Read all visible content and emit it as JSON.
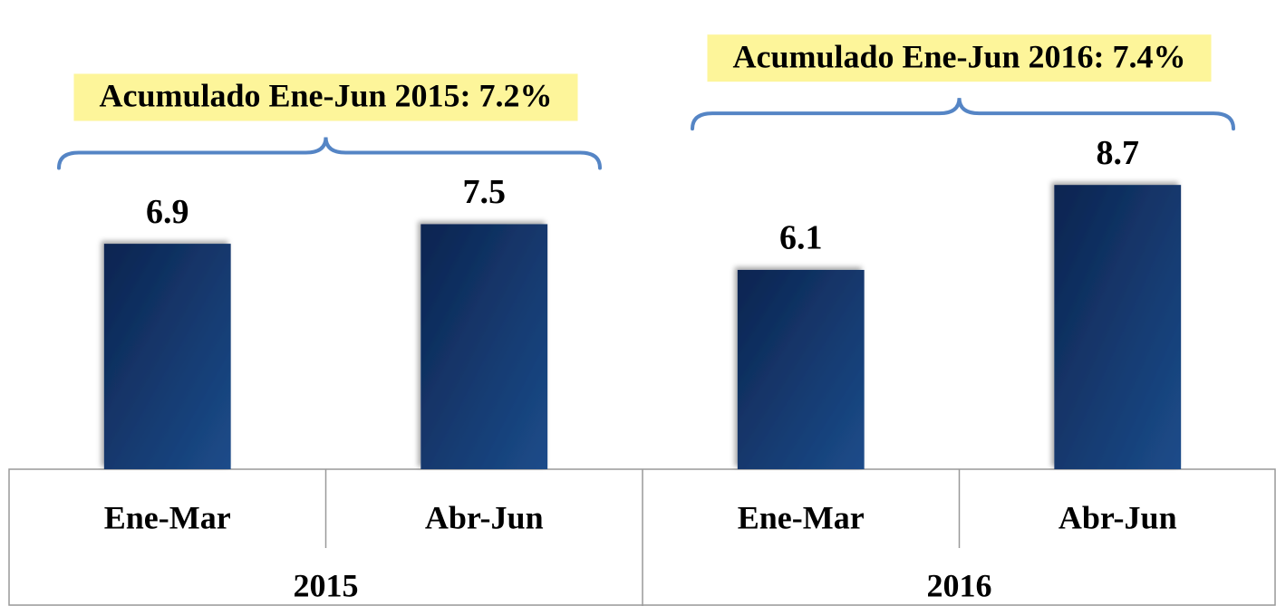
{
  "chart_data": {
    "type": "bar",
    "categories": [
      "Ene-Mar",
      "Abr-Jun",
      "Ene-Mar",
      "Abr-Jun"
    ],
    "values": [
      6.9,
      7.5,
      6.1,
      8.7
    ],
    "color": "#153e75",
    "ylim": [
      0,
      14
    ],
    "groups": [
      {
        "label": "2015",
        "annotation": "Acumulado Ene-Jun 2015: 7.2%"
      },
      {
        "label": "2016",
        "annotation": "Acumulado Ene-Jun 2016: 7.4%"
      }
    ]
  }
}
